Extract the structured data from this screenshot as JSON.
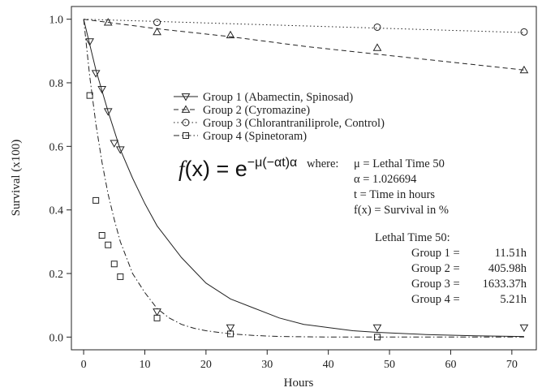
{
  "chart_data": {
    "type": "scatter",
    "xlabel": "Hours",
    "ylabel": "Survival (x100)",
    "xlim": [
      -2,
      74
    ],
    "ylim": [
      -0.04,
      1.04
    ],
    "xticks": [
      0,
      10,
      20,
      30,
      40,
      50,
      60,
      70
    ],
    "yticks": [
      "0.0",
      "0.2",
      "0.4",
      "0.6",
      "0.8",
      "1.0"
    ],
    "grid": false,
    "legend_position": "center",
    "series": [
      {
        "name": "Group 1 (Abamectin, Spinosad)",
        "marker": "triangle-down",
        "line_style": "solid",
        "x": [
          1,
          2,
          3,
          4,
          5,
          6,
          12,
          24,
          48,
          72
        ],
        "y": [
          0.93,
          0.83,
          0.78,
          0.71,
          0.61,
          0.59,
          0.08,
          0.03,
          0.03,
          0.03
        ],
        "fit_x": [
          0,
          2,
          4,
          6,
          8,
          10,
          12,
          14,
          16,
          18,
          20,
          24,
          28,
          32,
          36,
          40,
          44,
          48,
          56,
          64,
          72
        ],
        "fit_y": [
          1.0,
          0.84,
          0.71,
          0.59,
          0.5,
          0.42,
          0.35,
          0.3,
          0.25,
          0.21,
          0.17,
          0.12,
          0.09,
          0.06,
          0.04,
          0.03,
          0.02,
          0.015,
          0.008,
          0.004,
          0.002
        ]
      },
      {
        "name": "Group 2 (Cyromazine)",
        "marker": "triangle-up",
        "line_style": "dashed",
        "x": [
          4,
          12,
          24,
          48,
          72
        ],
        "y": [
          0.99,
          0.96,
          0.95,
          0.91,
          0.84
        ],
        "fit_x": [
          0,
          12,
          24,
          36,
          48,
          60,
          72
        ],
        "fit_y": [
          1.0,
          0.97,
          0.945,
          0.915,
          0.89,
          0.865,
          0.84
        ]
      },
      {
        "name": "Group 3 (Chlorantraniliprole, Control)",
        "marker": "circle",
        "line_style": "dotted",
        "x": [
          12,
          48,
          72
        ],
        "y": [
          0.99,
          0.975,
          0.96
        ],
        "fit_x": [
          0,
          12,
          24,
          36,
          48,
          60,
          72
        ],
        "fit_y": [
          1.0,
          0.993,
          0.986,
          0.979,
          0.972,
          0.965,
          0.958
        ]
      },
      {
        "name": "Group 4 (Spinetoram)",
        "marker": "square",
        "line_style": "dashdot",
        "x": [
          1,
          2,
          3,
          4,
          5,
          6,
          12,
          24,
          48
        ],
        "y": [
          0.76,
          0.43,
          0.32,
          0.29,
          0.23,
          0.19,
          0.06,
          0.01,
          0.0
        ],
        "fit_x": [
          0,
          1,
          2,
          3,
          4,
          5,
          6,
          8,
          10,
          12,
          14,
          16,
          18,
          20,
          24,
          28,
          32,
          40,
          48,
          56,
          64,
          72
        ],
        "fit_y": [
          1.0,
          0.82,
          0.67,
          0.55,
          0.45,
          0.37,
          0.3,
          0.2,
          0.14,
          0.09,
          0.06,
          0.04,
          0.028,
          0.02,
          0.01,
          0.005,
          0.002,
          0.0,
          0.0,
          0.0,
          0.0,
          0.0
        ]
      }
    ]
  },
  "formula": {
    "fx": "f",
    "body": "(x) = e",
    "exponent": "−μ(−αt)α"
  },
  "where_block": {
    "where_label": "where:",
    "lines": [
      "μ = Lethal Time 50",
      "α = 1.026694",
      "t = Time in hours",
      "f(x) = Survival in %"
    ]
  },
  "lt50_block": {
    "title": "Lethal Time 50:",
    "rows": [
      {
        "label": "Group 1 =",
        "value": "11.51h"
      },
      {
        "label": "Group 2 =",
        "value": "405.98h"
      },
      {
        "label": "Group 3 =",
        "value": "1633.37h"
      },
      {
        "label": "Group 4 =",
        "value": "5.21h"
      }
    ]
  }
}
